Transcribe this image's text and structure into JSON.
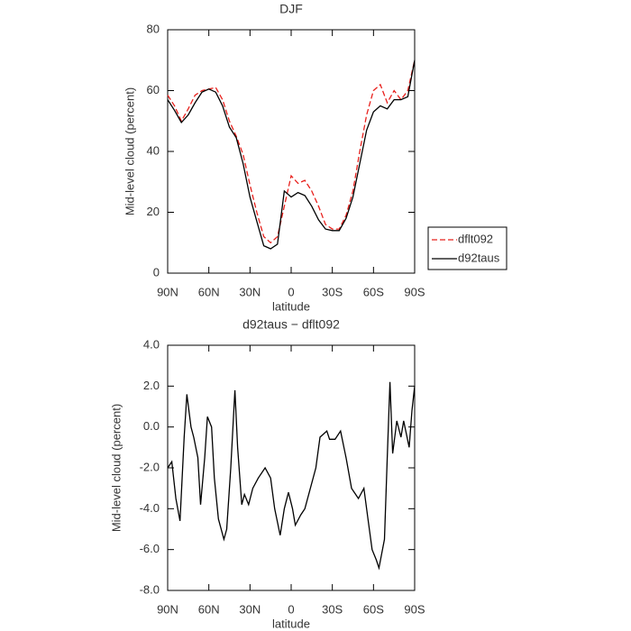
{
  "chart_data": [
    {
      "type": "line",
      "title": "DJF",
      "x_label": "latitude",
      "y_label": "Mid-level cloud (percent)",
      "x": [
        90,
        85,
        80,
        75,
        70,
        65,
        60,
        55,
        50,
        45,
        40,
        35,
        30,
        25,
        20,
        15,
        10,
        5,
        0,
        -5,
        -10,
        -15,
        -20,
        -25,
        -30,
        -35,
        -40,
        -45,
        -50,
        -55,
        -60,
        -65,
        -70,
        -75,
        -80,
        -85,
        -90
      ],
      "xlim": [
        90,
        -90
      ],
      "xticks": [
        {
          "value": 90,
          "label": "90N"
        },
        {
          "value": 60,
          "label": "60N"
        },
        {
          "value": 30,
          "label": "30N"
        },
        0,
        {
          "value": -30,
          "label": "30S"
        },
        {
          "value": -60,
          "label": "60S"
        },
        {
          "value": -90,
          "label": "90S"
        }
      ],
      "ylim": [
        0,
        80
      ],
      "yticks": [
        0,
        20,
        40,
        60,
        80
      ],
      "legend": "right",
      "series": [
        {
          "name": "dflt092",
          "color": "#e8201c",
          "line_style": "dashed",
          "values": [
            58.5,
            55,
            50,
            54,
            58.5,
            60,
            60.5,
            61,
            57,
            50,
            45,
            39,
            29,
            20,
            12,
            10,
            12,
            22,
            32,
            29.5,
            30.5,
            27,
            22,
            16,
            14.5,
            14.5,
            19,
            27,
            40,
            52,
            60,
            62,
            56,
            60,
            57,
            60,
            70
          ]
        },
        {
          "name": "d92taus",
          "color": "#000000",
          "line_style": "solid",
          "values": [
            57,
            53.5,
            49.5,
            52,
            56,
            59.5,
            60.5,
            59.5,
            55,
            48,
            44.5,
            36,
            25,
            17,
            9,
            8,
            9.5,
            27,
            25,
            26.5,
            25.5,
            22,
            17.5,
            14.5,
            14,
            14,
            18,
            25,
            36,
            47,
            53,
            55,
            54,
            57,
            57,
            58,
            70
          ]
        }
      ]
    },
    {
      "type": "line",
      "title": "d92taus − dflt092",
      "x_label": "latitude",
      "y_label": "Mid-level cloud (percent)",
      "x": [
        90,
        87,
        84,
        81,
        78,
        76,
        73,
        71,
        68,
        66,
        63,
        61,
        58,
        56,
        53,
        49,
        47,
        44,
        41,
        39,
        36,
        34,
        31,
        28,
        24,
        19,
        15,
        12,
        8,
        5,
        2,
        -1,
        -3,
        -7,
        -10,
        -14,
        -18,
        -21,
        -26,
        -28,
        -32,
        -36,
        -40,
        -44,
        -49,
        -53,
        -56,
        -59,
        -62,
        -64,
        -68,
        -70,
        -72,
        -74,
        -77,
        -80,
        -82,
        -86,
        -88,
        -90
      ],
      "xlim": [
        90,
        -90
      ],
      "xticks": [
        {
          "value": 90,
          "label": "90N"
        },
        {
          "value": 60,
          "label": "60N"
        },
        {
          "value": 30,
          "label": "30N"
        },
        0,
        {
          "value": -30,
          "label": "30S"
        },
        {
          "value": -60,
          "label": "60S"
        },
        {
          "value": -90,
          "label": "90S"
        }
      ],
      "ylim": [
        -8,
        4
      ],
      "yticks": [
        {
          "value": 4,
          "label": "4.0"
        },
        {
          "value": 2,
          "label": "2.0"
        },
        {
          "value": 0,
          "label": "0.0"
        },
        {
          "value": -2,
          "label": "-2.0"
        },
        {
          "value": -4,
          "label": "-4.0"
        },
        {
          "value": -6,
          "label": "-6.0"
        },
        {
          "value": -8,
          "label": "-8.0"
        }
      ],
      "series": [
        {
          "color": "#000000",
          "line_style": "solid",
          "values": [
            -2.0,
            -1.7,
            -3.5,
            -4.6,
            -0.5,
            1.6,
            0,
            -0.5,
            -1.5,
            -3.8,
            -1.5,
            0.5,
            0,
            -2.5,
            -4.5,
            -5.5,
            -5.0,
            -2.0,
            1.8,
            -1.0,
            -3.8,
            -3.3,
            -3.8,
            -3.0,
            -2.5,
            -2.0,
            -2.5,
            -4.0,
            -5.3,
            -4.0,
            -3.2,
            -4.0,
            -4.8,
            -4.3,
            -4.0,
            -3.0,
            -2.0,
            -0.5,
            -0.2,
            -0.6,
            -0.6,
            -0.2,
            -1.5,
            -3.0,
            -3.5,
            -3.0,
            -4.5,
            -6.0,
            -6.5,
            -6.9,
            -5.5,
            -1.5,
            2.2,
            -1.3,
            0.3,
            -0.5,
            0.3,
            -1.0,
            0.8,
            2.0
          ]
        }
      ]
    }
  ]
}
